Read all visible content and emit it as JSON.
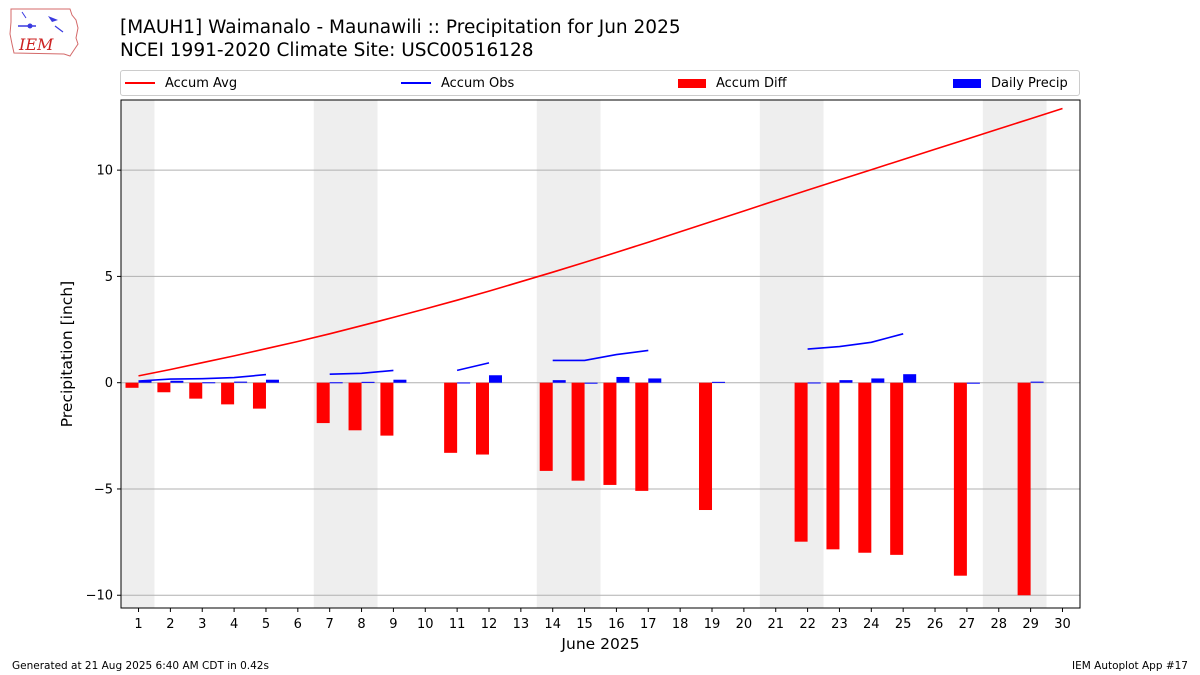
{
  "header": {
    "title_line1": "[MAUH1] Waimanalo - Maunawili :: Precipitation for Jun 2025",
    "title_line2": "NCEI 1991-2020 Climate Site: USC00516128",
    "logo_text": "IEM"
  },
  "legend": [
    {
      "label": "Accum Avg",
      "kind": "line",
      "color": "#ff0000"
    },
    {
      "label": "Accum Obs",
      "kind": "line",
      "color": "#0000ff"
    },
    {
      "label": "Accum Diff",
      "kind": "bar",
      "color": "#ff0000"
    },
    {
      "label": "Daily Precip",
      "kind": "bar",
      "color": "#0000ff"
    }
  ],
  "footer": {
    "left": "Generated at 21 Aug 2025 6:40 AM CDT in 0.42s",
    "right": "IEM Autoplot App #17"
  },
  "chart_data": {
    "type": "bar",
    "xlabel": "June 2025",
    "ylabel": "Precipitation [inch]",
    "x": [
      1,
      2,
      3,
      4,
      5,
      6,
      7,
      8,
      9,
      10,
      11,
      12,
      13,
      14,
      15,
      16,
      17,
      18,
      19,
      20,
      21,
      22,
      23,
      24,
      25,
      26,
      27,
      28,
      29,
      30
    ],
    "xticks": [
      "1",
      "2",
      "3",
      "4",
      "5",
      "6",
      "7",
      "8",
      "9",
      "10",
      "11",
      "12",
      "13",
      "14",
      "15",
      "16",
      "17",
      "18",
      "19",
      "20",
      "21",
      "22",
      "23",
      "24",
      "25",
      "26",
      "27",
      "28",
      "29",
      "30"
    ],
    "yticks": [
      -10,
      -5,
      0,
      5,
      10
    ],
    "ytick_labels": [
      "−10",
      "−5",
      "0",
      "5",
      "10"
    ],
    "ylim": [
      -10.6,
      13.3
    ],
    "xlim": [
      0.45,
      30.55
    ],
    "grid": "horizontal",
    "weekend_shading": [
      [
        0.45,
        1.5
      ],
      [
        6.5,
        8.5
      ],
      [
        13.5,
        15.5
      ],
      [
        20.5,
        22.5
      ],
      [
        27.5,
        29.5
      ]
    ],
    "series": [
      {
        "name": "Accum Avg",
        "kind": "line",
        "color": "#ff0000",
        "segments": [
          [
            [
              1,
              0.32
            ],
            [
              2,
              0.62
            ],
            [
              3,
              0.94
            ],
            [
              4,
              1.26
            ],
            [
              5,
              1.6
            ],
            [
              6,
              1.94
            ],
            [
              7,
              2.3
            ],
            [
              8,
              2.68
            ],
            [
              9,
              3.07
            ],
            [
              10,
              3.47
            ],
            [
              11,
              3.88
            ],
            [
              12,
              4.31
            ],
            [
              13,
              4.75
            ],
            [
              14,
              5.2
            ],
            [
              15,
              5.66
            ],
            [
              16,
              6.13
            ],
            [
              17,
              6.61
            ],
            [
              18,
              7.1
            ],
            [
              19,
              7.59
            ],
            [
              20,
              8.08
            ],
            [
              21,
              8.57
            ],
            [
              22,
              9.06
            ],
            [
              23,
              9.54
            ],
            [
              24,
              10.02
            ],
            [
              25,
              10.5
            ],
            [
              26,
              10.98
            ],
            [
              27,
              11.46
            ],
            [
              28,
              11.94
            ],
            [
              29,
              12.42
            ],
            [
              30,
              12.9
            ]
          ]
        ]
      },
      {
        "name": "Accum Obs",
        "kind": "line",
        "color": "#0000ff",
        "segments": [
          [
            [
              1,
              0.08
            ],
            [
              2,
              0.17
            ],
            [
              3,
              0.19
            ],
            [
              4,
              0.24
            ],
            [
              5,
              0.38
            ]
          ],
          [
            [
              7,
              0.4
            ],
            [
              8,
              0.44
            ],
            [
              9,
              0.58
            ]
          ],
          [
            [
              11,
              0.58
            ],
            [
              12,
              0.93
            ]
          ],
          [
            [
              14,
              1.05
            ],
            [
              15,
              1.05
            ],
            [
              16,
              1.32
            ],
            [
              17,
              1.52
            ]
          ],
          [
            [
              22,
              1.58
            ],
            [
              23,
              1.7
            ],
            [
              24,
              1.9
            ],
            [
              25,
              2.3
            ]
          ]
        ]
      },
      {
        "name": "Accum Diff",
        "kind": "bar",
        "color": "#ff0000",
        "values": [
          -0.24,
          -0.45,
          -0.75,
          -1.02,
          -1.22,
          null,
          -1.9,
          -2.24,
          -2.49,
          null,
          -3.3,
          -3.38,
          null,
          -4.15,
          -4.61,
          -4.81,
          -5.09,
          null,
          -5.99,
          null,
          null,
          -7.48,
          -7.84,
          -8.0,
          -8.1,
          null,
          -9.08,
          null,
          -10.0,
          null
        ]
      },
      {
        "name": "Daily Precip",
        "kind": "bar",
        "color": "#0000ff",
        "values": [
          0.08,
          0.09,
          0.02,
          0.05,
          0.14,
          null,
          0.02,
          0.04,
          0.14,
          null,
          0.01,
          0.35,
          null,
          0.12,
          0.0,
          0.27,
          0.2,
          null,
          0.04,
          null,
          null,
          0.01,
          0.12,
          0.2,
          0.4,
          null,
          0.0,
          null,
          0.05,
          null
        ]
      }
    ]
  }
}
